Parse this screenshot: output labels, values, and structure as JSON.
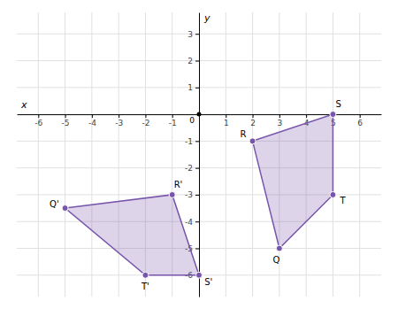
{
  "chart_data": {
    "type": "polygon",
    "xlabel": "x",
    "ylabel": "y",
    "origin_label": "0",
    "xlim": [
      -6.8,
      6.8
    ],
    "ylim": [
      -6.8,
      3.8
    ],
    "xticks": [
      -6,
      -5,
      -4,
      -3,
      -2,
      -1,
      1,
      2,
      3,
      4,
      5,
      6
    ],
    "yticks": [
      -6,
      -5,
      -4,
      -3,
      -2,
      -1,
      1,
      2,
      3
    ],
    "grid": true,
    "series": [
      {
        "color": "#7755aa",
        "labels": [
          "Q",
          "R",
          "S",
          "T"
        ],
        "x": [
          3,
          2,
          5,
          5
        ],
        "y": [
          -5,
          -1,
          0,
          -3
        ]
      },
      {
        "color": "#7755aa",
        "labels": [
          "Q'",
          "R'",
          "S'",
          "T'"
        ],
        "x": [
          -5,
          -1,
          0,
          -2
        ],
        "y": [
          -3.5,
          -3,
          -6,
          -6
        ]
      }
    ]
  }
}
